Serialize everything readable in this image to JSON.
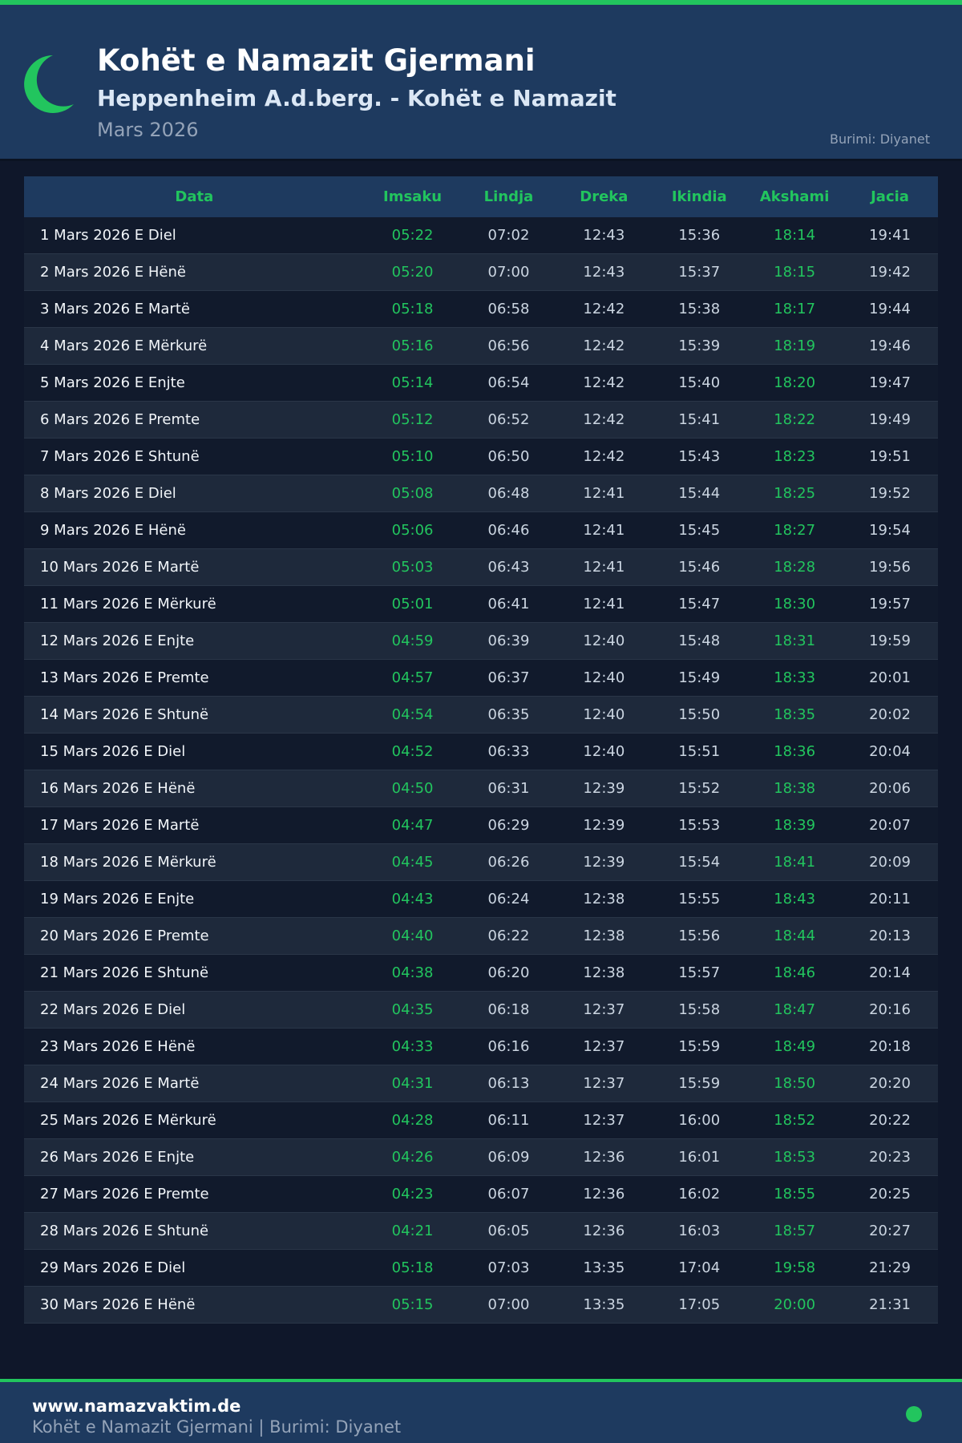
{
  "header": {
    "title": "Kohët e Namazit Gjermani",
    "subtitle": "Heppenheim A.d.berg. - Kohët e Namazit",
    "month": "Mars 2026",
    "source": "Burimi: Diyanet",
    "icon": "crescent-moon-icon"
  },
  "colors": {
    "accent": "#22c55e",
    "header_bg": "#1e3a5f",
    "page_bg": "#0f172a"
  },
  "table": {
    "columns": [
      "Data",
      "Imsaku",
      "Lindja",
      "Dreka",
      "Ikindia",
      "Akshami",
      "Jacia"
    ],
    "rows": [
      [
        "1 Mars 2026 E Diel",
        "05:22",
        "07:02",
        "12:43",
        "15:36",
        "18:14",
        "19:41"
      ],
      [
        "2 Mars 2026 E Hënë",
        "05:20",
        "07:00",
        "12:43",
        "15:37",
        "18:15",
        "19:42"
      ],
      [
        "3 Mars 2026 E Martë",
        "05:18",
        "06:58",
        "12:42",
        "15:38",
        "18:17",
        "19:44"
      ],
      [
        "4 Mars 2026 E Mërkurë",
        "05:16",
        "06:56",
        "12:42",
        "15:39",
        "18:19",
        "19:46"
      ],
      [
        "5 Mars 2026 E Enjte",
        "05:14",
        "06:54",
        "12:42",
        "15:40",
        "18:20",
        "19:47"
      ],
      [
        "6 Mars 2026 E Premte",
        "05:12",
        "06:52",
        "12:42",
        "15:41",
        "18:22",
        "19:49"
      ],
      [
        "7 Mars 2026 E Shtunë",
        "05:10",
        "06:50",
        "12:42",
        "15:43",
        "18:23",
        "19:51"
      ],
      [
        "8 Mars 2026 E Diel",
        "05:08",
        "06:48",
        "12:41",
        "15:44",
        "18:25",
        "19:52"
      ],
      [
        "9 Mars 2026 E Hënë",
        "05:06",
        "06:46",
        "12:41",
        "15:45",
        "18:27",
        "19:54"
      ],
      [
        "10 Mars 2026 E Martë",
        "05:03",
        "06:43",
        "12:41",
        "15:46",
        "18:28",
        "19:56"
      ],
      [
        "11 Mars 2026 E Mërkurë",
        "05:01",
        "06:41",
        "12:41",
        "15:47",
        "18:30",
        "19:57"
      ],
      [
        "12 Mars 2026 E Enjte",
        "04:59",
        "06:39",
        "12:40",
        "15:48",
        "18:31",
        "19:59"
      ],
      [
        "13 Mars 2026 E Premte",
        "04:57",
        "06:37",
        "12:40",
        "15:49",
        "18:33",
        "20:01"
      ],
      [
        "14 Mars 2026 E Shtunë",
        "04:54",
        "06:35",
        "12:40",
        "15:50",
        "18:35",
        "20:02"
      ],
      [
        "15 Mars 2026 E Diel",
        "04:52",
        "06:33",
        "12:40",
        "15:51",
        "18:36",
        "20:04"
      ],
      [
        "16 Mars 2026 E Hënë",
        "04:50",
        "06:31",
        "12:39",
        "15:52",
        "18:38",
        "20:06"
      ],
      [
        "17 Mars 2026 E Martë",
        "04:47",
        "06:29",
        "12:39",
        "15:53",
        "18:39",
        "20:07"
      ],
      [
        "18 Mars 2026 E Mërkurë",
        "04:45",
        "06:26",
        "12:39",
        "15:54",
        "18:41",
        "20:09"
      ],
      [
        "19 Mars 2026 E Enjte",
        "04:43",
        "06:24",
        "12:38",
        "15:55",
        "18:43",
        "20:11"
      ],
      [
        "20 Mars 2026 E Premte",
        "04:40",
        "06:22",
        "12:38",
        "15:56",
        "18:44",
        "20:13"
      ],
      [
        "21 Mars 2026 E Shtunë",
        "04:38",
        "06:20",
        "12:38",
        "15:57",
        "18:46",
        "20:14"
      ],
      [
        "22 Mars 2026 E Diel",
        "04:35",
        "06:18",
        "12:37",
        "15:58",
        "18:47",
        "20:16"
      ],
      [
        "23 Mars 2026 E Hënë",
        "04:33",
        "06:16",
        "12:37",
        "15:59",
        "18:49",
        "20:18"
      ],
      [
        "24 Mars 2026 E Martë",
        "04:31",
        "06:13",
        "12:37",
        "15:59",
        "18:50",
        "20:20"
      ],
      [
        "25 Mars 2026 E Mërkurë",
        "04:28",
        "06:11",
        "12:37",
        "16:00",
        "18:52",
        "20:22"
      ],
      [
        "26 Mars 2026 E Enjte",
        "04:26",
        "06:09",
        "12:36",
        "16:01",
        "18:53",
        "20:23"
      ],
      [
        "27 Mars 2026 E Premte",
        "04:23",
        "06:07",
        "12:36",
        "16:02",
        "18:55",
        "20:25"
      ],
      [
        "28 Mars 2026 E Shtunë",
        "04:21",
        "06:05",
        "12:36",
        "16:03",
        "18:57",
        "20:27"
      ],
      [
        "29 Mars 2026 E Diel",
        "05:18",
        "07:03",
        "13:35",
        "17:04",
        "19:58",
        "21:29"
      ],
      [
        "30 Mars 2026 E Hënë",
        "05:15",
        "07:00",
        "13:35",
        "17:05",
        "20:00",
        "21:31"
      ]
    ]
  },
  "footer": {
    "site": "www.namazvaktim.de",
    "text": "Kohët e Namazit Gjermani | Burimi: Diyanet"
  }
}
